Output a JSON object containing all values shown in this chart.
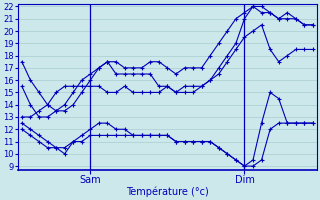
{
  "xlabel": "Température (°c)",
  "bg_color": "#cce8ea",
  "grid_color": "#aacdd0",
  "line_color": "#0000bb",
  "ylim": [
    9,
    22
  ],
  "yticks": [
    9,
    10,
    11,
    12,
    13,
    14,
    15,
    16,
    17,
    18,
    19,
    20,
    21,
    22
  ],
  "series": [
    {
      "x": [
        0,
        2,
        4,
        6,
        8,
        10,
        12,
        14,
        16,
        18,
        20,
        22,
        24,
        26,
        28,
        30,
        32,
        34,
        36,
        38,
        40,
        42,
        44,
        46,
        48,
        50,
        52,
        54,
        56,
        58,
        60,
        62,
        64,
        66,
        68
      ],
      "y": [
        17.5,
        16.0,
        15.0,
        14.0,
        13.5,
        13.5,
        14.0,
        15.0,
        16.0,
        17.0,
        17.5,
        17.5,
        17.0,
        17.0,
        17.0,
        17.5,
        17.5,
        17.0,
        16.5,
        17.0,
        17.0,
        17.0,
        18.0,
        19.0,
        20.0,
        21.0,
        21.5,
        22.0,
        22.0,
        21.5,
        21.0,
        21.5,
        21.0,
        20.5,
        20.5
      ]
    },
    {
      "x": [
        0,
        2,
        4,
        6,
        8,
        10,
        12,
        14,
        16,
        18,
        20,
        22,
        24,
        26,
        28,
        30,
        32,
        34,
        36,
        38,
        40,
        42,
        44,
        46,
        48,
        50,
        52,
        54,
        56,
        58,
        60,
        62,
        64,
        66,
        68
      ],
      "y": [
        15.5,
        14.0,
        13.0,
        13.0,
        13.5,
        14.0,
        15.0,
        16.0,
        16.5,
        17.0,
        17.5,
        16.5,
        16.5,
        16.5,
        16.5,
        16.5,
        15.5,
        15.5,
        15.0,
        15.5,
        15.5,
        15.5,
        16.0,
        17.0,
        18.0,
        19.0,
        21.0,
        22.0,
        21.5,
        21.5,
        21.0,
        21.0,
        21.0,
        20.5,
        20.5
      ]
    },
    {
      "x": [
        0,
        2,
        4,
        6,
        8,
        10,
        12,
        14,
        16,
        18,
        20,
        22,
        24,
        26,
        28,
        30,
        32,
        34,
        36,
        38,
        40,
        42,
        44,
        46,
        48,
        50,
        52,
        54,
        56,
        58,
        60,
        62,
        64,
        66,
        68
      ],
      "y": [
        13.0,
        13.0,
        13.5,
        14.0,
        15.0,
        15.5,
        15.5,
        15.5,
        15.5,
        15.5,
        15.0,
        15.0,
        15.5,
        15.0,
        15.0,
        15.0,
        15.0,
        15.5,
        15.0,
        15.0,
        15.0,
        15.5,
        16.0,
        16.5,
        17.5,
        18.5,
        19.5,
        20.0,
        20.5,
        18.5,
        17.5,
        18.0,
        18.5,
        18.5,
        18.5
      ]
    },
    {
      "x": [
        0,
        2,
        4,
        6,
        8,
        10,
        12,
        14,
        16,
        18,
        20,
        22,
        24,
        26,
        28,
        30,
        32,
        34,
        36,
        38,
        40,
        42,
        44,
        46,
        48,
        50,
        52,
        54,
        56,
        58,
        60,
        62,
        64,
        66,
        68
      ],
      "y": [
        12.5,
        12.0,
        11.5,
        11.0,
        10.5,
        10.0,
        11.0,
        11.5,
        12.0,
        12.5,
        12.5,
        12.0,
        12.0,
        11.5,
        11.5,
        11.5,
        11.5,
        11.5,
        11.0,
        11.0,
        11.0,
        11.0,
        11.0,
        10.5,
        10.0,
        9.5,
        9.0,
        9.5,
        12.5,
        15.0,
        14.5,
        12.5,
        12.5,
        12.5,
        12.5
      ]
    },
    {
      "x": [
        0,
        2,
        4,
        6,
        8,
        10,
        12,
        14,
        16,
        18,
        20,
        22,
        24,
        26,
        28,
        30,
        32,
        34,
        36,
        38,
        40,
        42,
        44,
        46,
        48,
        50,
        52,
        54,
        56,
        58,
        60,
        62,
        64,
        66,
        68
      ],
      "y": [
        12.0,
        11.5,
        11.0,
        10.5,
        10.5,
        10.5,
        11.0,
        11.0,
        11.5,
        11.5,
        11.5,
        11.5,
        11.5,
        11.5,
        11.5,
        11.5,
        11.5,
        11.5,
        11.0,
        11.0,
        11.0,
        11.0,
        11.0,
        10.5,
        10.0,
        9.5,
        9.0,
        9.0,
        9.5,
        12.0,
        12.5,
        12.5,
        12.5,
        12.5,
        12.5
      ]
    }
  ],
  "sam_xi": 8,
  "dim_xi": 26,
  "n_points": 35,
  "xmax": 68,
  "sam_label": "Sam",
  "dim_label": "Dim",
  "xlabel_fontsize": 7,
  "tick_fontsize": 6
}
